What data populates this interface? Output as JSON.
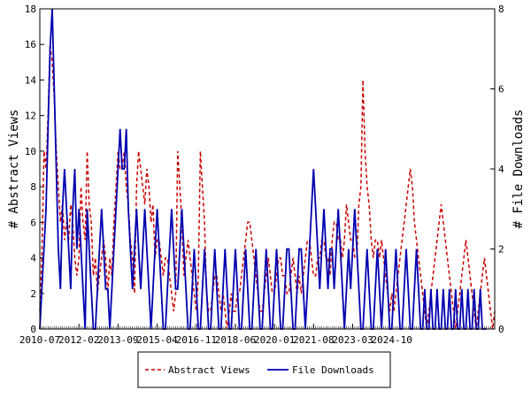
{
  "chart_data": {
    "type": "line",
    "xlabel": "",
    "ylabel": "# Abstract Views",
    "y2label": "# File Downloads",
    "x_tick_labels": [
      "2010-07",
      "2012-02",
      "2013-09",
      "2015-04",
      "2016-11",
      "2018-06",
      "2020-01",
      "2021-08",
      "2023-03",
      "2024-10"
    ],
    "x_start": "2010-07",
    "y_ticks": [
      0,
      2,
      4,
      6,
      8,
      10,
      12,
      14,
      16,
      18
    ],
    "y2_ticks": [
      0,
      2,
      4,
      6,
      8
    ],
    "ylim": [
      0,
      18
    ],
    "y2lim": [
      0,
      8
    ],
    "legend_position": "bottom",
    "grid": false,
    "series": [
      {
        "name": "Abstract Views",
        "axis": "left",
        "color": "#cc0000",
        "style": "dashed",
        "values": [
          1,
          4,
          10,
          9,
          12,
          16,
          15,
          13,
          10,
          8,
          6,
          7,
          5,
          6,
          5,
          7,
          6,
          4,
          3,
          4,
          8,
          6,
          5,
          10,
          7,
          6,
          3,
          4,
          2,
          3,
          4,
          5,
          4,
          2,
          4,
          3,
          6,
          8,
          10,
          9,
          9,
          10,
          8,
          7,
          5,
          4,
          2,
          8,
          10,
          9,
          8,
          7,
          9,
          8,
          6,
          7,
          4,
          5,
          5,
          4,
          3,
          4,
          4,
          3,
          2,
          1,
          2,
          10,
          8,
          6,
          3,
          4,
          5,
          4,
          3,
          2,
          1,
          3,
          10,
          8,
          6,
          2,
          1,
          1,
          2,
          3,
          3,
          2,
          1,
          2,
          1,
          0,
          1,
          2,
          1,
          1,
          2,
          2,
          3,
          4,
          5,
          6,
          6,
          5,
          4,
          3,
          2,
          1,
          1,
          2,
          3,
          4,
          3,
          2,
          2,
          3,
          4,
          4,
          3,
          3,
          2,
          2,
          3,
          4,
          3,
          2,
          3,
          2,
          3,
          4,
          5,
          5,
          4,
          3,
          3,
          4,
          4,
          5,
          5,
          4,
          4,
          3,
          5,
          6,
          6,
          5,
          5,
          4,
          5,
          7,
          6,
          5,
          5,
          4,
          4,
          7,
          8,
          14,
          10,
          8,
          7,
          5,
          4,
          5,
          5,
          4,
          5,
          4,
          3,
          2,
          1,
          2,
          1,
          2,
          3,
          4,
          5,
          6,
          7,
          8,
          9,
          8,
          6,
          5,
          4,
          3,
          2,
          1,
          0,
          1,
          2,
          3,
          4,
          5,
          6,
          7,
          6,
          5,
          4,
          3,
          2,
          1,
          0,
          1,
          2,
          3,
          4,
          5,
          4,
          3,
          2,
          1,
          0,
          1,
          2,
          3,
          4,
          3,
          2,
          1,
          0,
          1
        ]
      },
      {
        "name": "File Downloads",
        "axis": "right",
        "color": "#0000b0",
        "style": "solid",
        "values": [
          0,
          1,
          2,
          3,
          5,
          7,
          8,
          6,
          4,
          2,
          1,
          3,
          4,
          3,
          2,
          1,
          3,
          4,
          2,
          3,
          2,
          1,
          0,
          3,
          2,
          1,
          0,
          0,
          1,
          2,
          3,
          2,
          1,
          1,
          0,
          1,
          2,
          3,
          4,
          5,
          4,
          4,
          5,
          3,
          2,
          1,
          2,
          3,
          2,
          1,
          2,
          3,
          2,
          1,
          0,
          1,
          2,
          3,
          2,
          1,
          0,
          0,
          1,
          2,
          3,
          2,
          1,
          1,
          2,
          3,
          2,
          1,
          0,
          0,
          1,
          2,
          1,
          0,
          0,
          1,
          2,
          1,
          0,
          0,
          1,
          2,
          1,
          0,
          0,
          1,
          2,
          1,
          0,
          0,
          1,
          2,
          1,
          0,
          0,
          1,
          2,
          1,
          0,
          0,
          1,
          2,
          1,
          0,
          0,
          1,
          2,
          1,
          0,
          0,
          1,
          2,
          1,
          0,
          0,
          1,
          2,
          2,
          1,
          0,
          0,
          1,
          2,
          2,
          1,
          0,
          1,
          2,
          3,
          4,
          3,
          2,
          1,
          2,
          3,
          2,
          1,
          2,
          2,
          1,
          2,
          3,
          2,
          1,
          0,
          1,
          2,
          1,
          2,
          3,
          2,
          1,
          0,
          0,
          1,
          2,
          1,
          0,
          0,
          1,
          2,
          1,
          0,
          1,
          2,
          1,
          0,
          0,
          1,
          2,
          1,
          0,
          0,
          1,
          2,
          1,
          0,
          0,
          1,
          2,
          1,
          0,
          0,
          1,
          0,
          0,
          1,
          0,
          0,
          1,
          0,
          0,
          1,
          0,
          0,
          1,
          0,
          0,
          1,
          0,
          0,
          1,
          0,
          0,
          1,
          0,
          0,
          1,
          0,
          0,
          1,
          0,
          0,
          0
        ]
      }
    ]
  }
}
